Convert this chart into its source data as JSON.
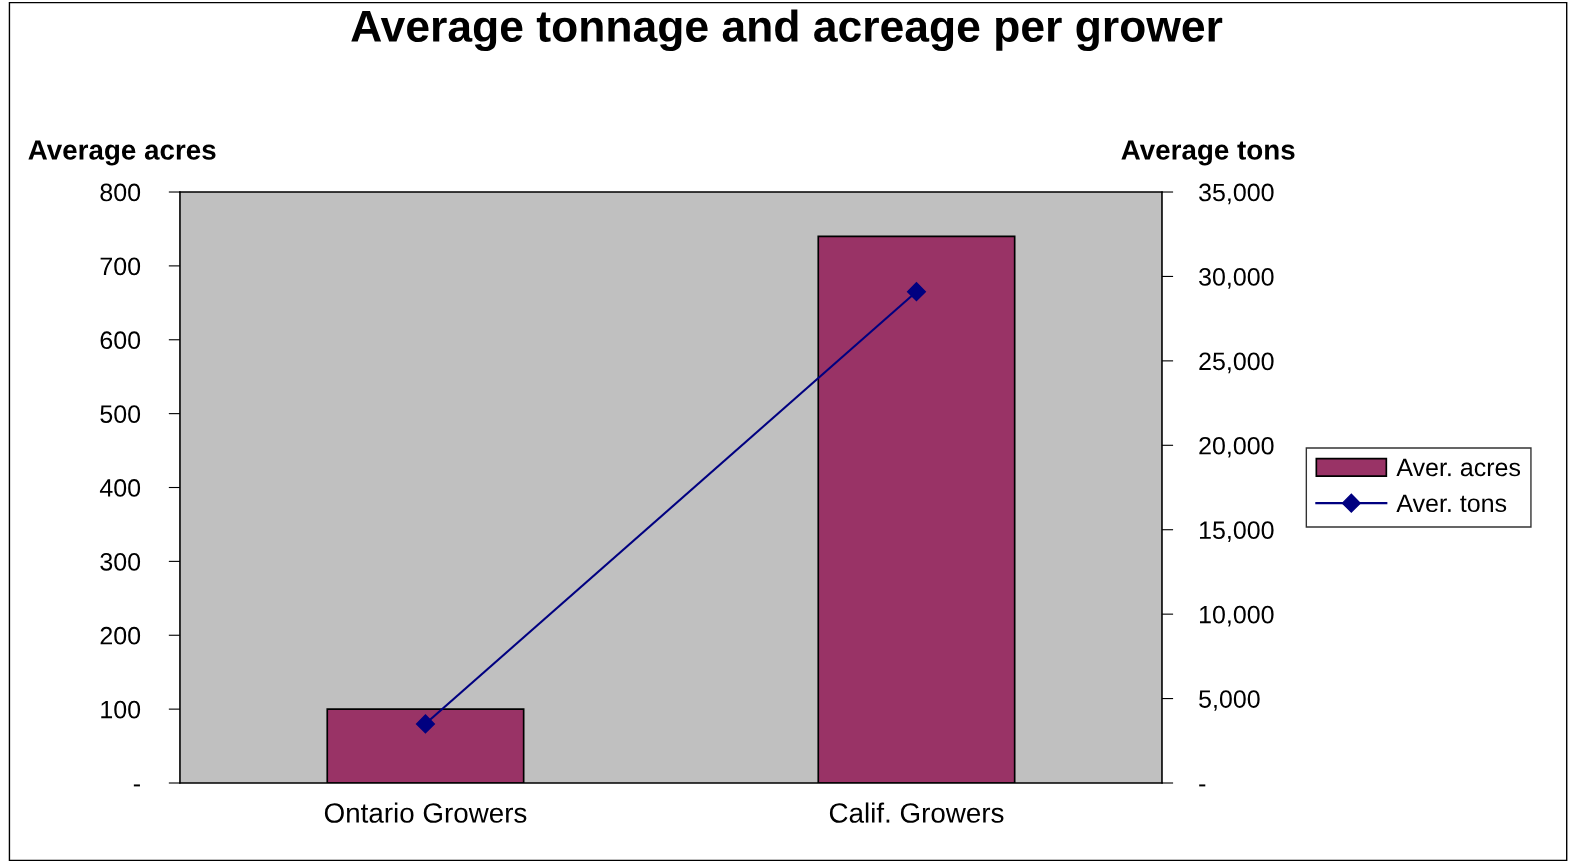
{
  "chart_data": {
    "type": "bar",
    "title": "Average tonnage and acreage per grower",
    "ylabel": "Average acres",
    "y2label": "Average tons",
    "categories": [
      "Ontario Growers",
      "Calif. Growers"
    ],
    "series": [
      {
        "name": "Aver. acres",
        "color": "#993366",
        "values": [
          100,
          740
        ]
      },
      {
        "name": "Aver. tons",
        "type": "line",
        "axis": "y2",
        "color": "#000080",
        "marker": "diamond",
        "values": [
          3500,
          29100
        ]
      }
    ],
    "ylim": [
      0,
      800
    ],
    "yticks": [
      {
        "value": 0,
        "label": "-"
      },
      100,
      200,
      300,
      400,
      500,
      600,
      700,
      800
    ],
    "y2lim": [
      0,
      35000
    ],
    "y2ticks": [
      {
        "value": 0,
        "label": "-"
      },
      {
        "value": 5000,
        "label": "5,000"
      },
      {
        "value": 10000,
        "label": "10,000"
      },
      {
        "value": 15000,
        "label": "15,000"
      },
      {
        "value": 20000,
        "label": "20,000"
      },
      {
        "value": 25000,
        "label": "25,000"
      },
      {
        "value": 30000,
        "label": "30,000"
      },
      {
        "value": 35000,
        "label": "35,000"
      }
    ],
    "legend": "right",
    "grid": false
  }
}
